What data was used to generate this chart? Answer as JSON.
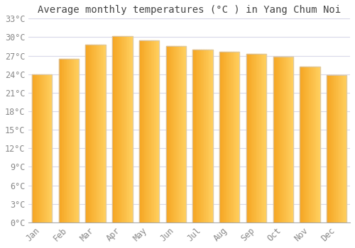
{
  "title": "Average monthly temperatures (°C ) in Yang Chum Noi",
  "months": [
    "Jan",
    "Feb",
    "Mar",
    "Apr",
    "May",
    "Jun",
    "Jul",
    "Aug",
    "Sep",
    "Oct",
    "Nov",
    "Dec"
  ],
  "values": [
    24.0,
    26.5,
    28.8,
    30.2,
    29.5,
    28.5,
    28.0,
    27.6,
    27.3,
    26.8,
    25.2,
    23.8
  ],
  "bar_color_left": "#F5A623",
  "bar_color_right": "#FFD060",
  "bar_edge_color": "#C8C8D0",
  "background_color": "#FFFFFF",
  "grid_color": "#D8D8E8",
  "text_color": "#888888",
  "ylim": [
    0,
    33
  ],
  "yticks": [
    0,
    3,
    6,
    9,
    12,
    15,
    18,
    21,
    24,
    27,
    30,
    33
  ],
  "title_fontsize": 10,
  "tick_fontsize": 8.5,
  "bar_width": 0.75
}
